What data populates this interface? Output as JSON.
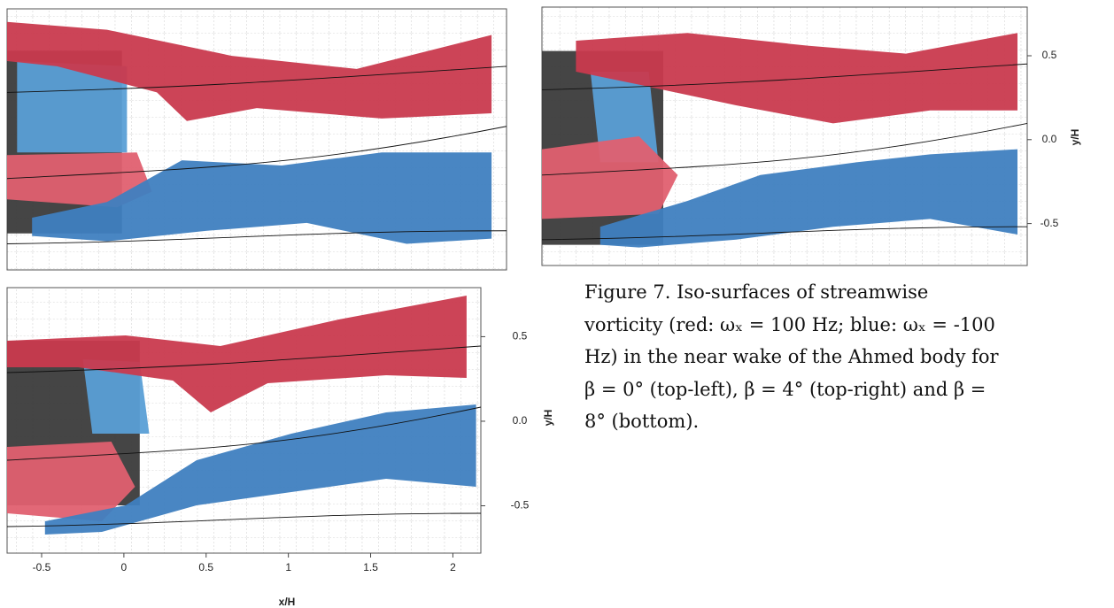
{
  "top_right": {
    "ylim": [
      -0.75,
      0.79
    ],
    "yticks": [
      {
        "value": 0.5,
        "label": "0.5"
      },
      {
        "value": 0,
        "label": "0.0"
      },
      {
        "value": -0.5,
        "label": "-0.5"
      }
    ],
    "y_label": "y/H"
  },
  "bottom": {
    "xlim": [
      -0.71,
      2.17
    ],
    "ylim": [
      -0.78,
      0.79
    ],
    "xticks": [
      -0.5,
      0,
      0.5,
      1,
      1.5,
      2
    ],
    "yticks": [
      {
        "value": 0.5,
        "label": "0.5"
      },
      {
        "value": 0,
        "label": "0.0"
      },
      {
        "value": -0.5,
        "label": "-0.5"
      }
    ],
    "x_label": "x/H",
    "y_label": "y/H"
  },
  "caption": [
    "Figure 7. Iso-surfaces of streamwise",
    "vorticity (red: ωₓ = 100 Hz; blue: ωₓ = -100",
    "Hz) in the near wake of the Ahmed body for",
    "β = 0° (top-left), β = 4° (top-right) and β =",
    "8° (bottom)."
  ]
}
